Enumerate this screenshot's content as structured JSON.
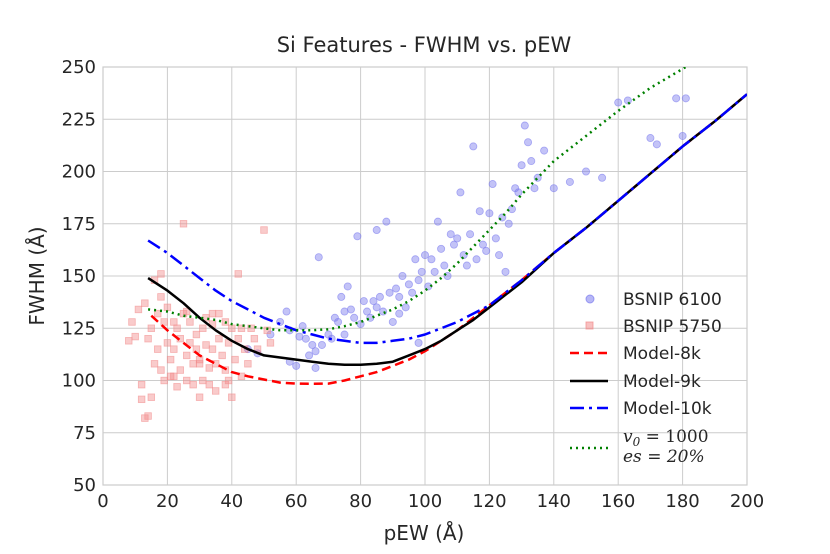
{
  "chart_data": {
    "type": "scatter",
    "title": "Si Features - FWHM vs. pEW",
    "xlabel": "pEW (Å)",
    "ylabel": "FWHM (Å)",
    "xlim": [
      0,
      200
    ],
    "ylim": [
      50,
      250
    ],
    "xticks": [
      "0",
      "20",
      "40",
      "60",
      "80",
      "100",
      "120",
      "140",
      "160",
      "180",
      "200"
    ],
    "yticks": [
      "50",
      "75",
      "100",
      "125",
      "150",
      "175",
      "200",
      "225",
      "250"
    ],
    "grid": true,
    "legend_position": "lower-right",
    "legend": {
      "bsnip6100": "BSNIP 6100",
      "bsnip5750": "BSNIP 5750",
      "model8k": "Model-8k",
      "model9k": "Model-9k",
      "model10k": "Model-10k",
      "v0_line1": "v",
      "v0_sub": "0",
      "v0_line1_rest": " = 1000",
      "es_line2": "es = 20%"
    },
    "colors": {
      "bsnip6100": "#7b7bee",
      "bsnip5750": "#f28c8c",
      "model8k": "#ff0000",
      "model9k": "#000000",
      "model10k": "#0000ff",
      "v0es": "#008000",
      "grid": "#cccccc",
      "text": "#262626"
    },
    "series": [
      {
        "name": "BSNIP 6100",
        "kind": "scatter",
        "marker": "circle",
        "points": [
          [
            45,
            115
          ],
          [
            48,
            113
          ],
          [
            52,
            122
          ],
          [
            55,
            128
          ],
          [
            57,
            133
          ],
          [
            58,
            124
          ],
          [
            60,
            107
          ],
          [
            61,
            121
          ],
          [
            62,
            126
          ],
          [
            63,
            120
          ],
          [
            64,
            112
          ],
          [
            65,
            117
          ],
          [
            66,
            114
          ],
          [
            67,
            159
          ],
          [
            68,
            117
          ],
          [
            70,
            122
          ],
          [
            71,
            120
          ],
          [
            72,
            130
          ],
          [
            73,
            128
          ],
          [
            74,
            140
          ],
          [
            75,
            133
          ],
          [
            76,
            145
          ],
          [
            77,
            134
          ],
          [
            78,
            130
          ],
          [
            79,
            169
          ],
          [
            80,
            127
          ],
          [
            81,
            138
          ],
          [
            82,
            133
          ],
          [
            83,
            130
          ],
          [
            84,
            138
          ],
          [
            85,
            135
          ],
          [
            86,
            140
          ],
          [
            87,
            133
          ],
          [
            88,
            176
          ],
          [
            89,
            142
          ],
          [
            90,
            128
          ],
          [
            91,
            144
          ],
          [
            92,
            140
          ],
          [
            93,
            150
          ],
          [
            94,
            135
          ],
          [
            95,
            146
          ],
          [
            96,
            142
          ],
          [
            97,
            158
          ],
          [
            98,
            148
          ],
          [
            99,
            152
          ],
          [
            100,
            160
          ],
          [
            101,
            145
          ],
          [
            102,
            158
          ],
          [
            103,
            152
          ],
          [
            104,
            176
          ],
          [
            105,
            163
          ],
          [
            106,
            155
          ],
          [
            107,
            150
          ],
          [
            108,
            170
          ],
          [
            109,
            165
          ],
          [
            110,
            168
          ],
          [
            111,
            190
          ],
          [
            112,
            160
          ],
          [
            113,
            155
          ],
          [
            114,
            170
          ],
          [
            115,
            212
          ],
          [
            116,
            158
          ],
          [
            117,
            181
          ],
          [
            118,
            165
          ],
          [
            119,
            162
          ],
          [
            120,
            180
          ],
          [
            121,
            194
          ],
          [
            122,
            168
          ],
          [
            123,
            160
          ],
          [
            124,
            178
          ],
          [
            125,
            152
          ],
          [
            126,
            175
          ],
          [
            127,
            182
          ],
          [
            128,
            192
          ],
          [
            129,
            190
          ],
          [
            130,
            203
          ],
          [
            131,
            222
          ],
          [
            132,
            214
          ],
          [
            133,
            205
          ],
          [
            134,
            192
          ],
          [
            135,
            197
          ],
          [
            137,
            210
          ],
          [
            140,
            192
          ],
          [
            145,
            195
          ],
          [
            150,
            200
          ],
          [
            155,
            197
          ],
          [
            160,
            233
          ],
          [
            163,
            234
          ],
          [
            170,
            216
          ],
          [
            172,
            213
          ],
          [
            178,
            235
          ],
          [
            180,
            217
          ],
          [
            181,
            235
          ],
          [
            85,
            172
          ],
          [
            92,
            132
          ],
          [
            98,
            118
          ],
          [
            75,
            122
          ],
          [
            66,
            106
          ],
          [
            58,
            109
          ]
        ]
      },
      {
        "name": "BSNIP 5750",
        "kind": "scatter",
        "marker": "square",
        "points": [
          [
            8,
            119
          ],
          [
            9,
            128
          ],
          [
            10,
            121
          ],
          [
            11,
            134
          ],
          [
            12,
            98
          ],
          [
            13,
            82
          ],
          [
            13,
            137
          ],
          [
            14,
            120
          ],
          [
            15,
            92
          ],
          [
            15,
            125
          ],
          [
            16,
            108
          ],
          [
            16,
            148
          ],
          [
            17,
            115
          ],
          [
            17,
            132
          ],
          [
            18,
            105
          ],
          [
            18,
            151
          ],
          [
            19,
            100
          ],
          [
            19,
            128
          ],
          [
            20,
            118
          ],
          [
            20,
            135
          ],
          [
            21,
            110
          ],
          [
            21,
            102
          ],
          [
            22,
            128
          ],
          [
            22,
            115
          ],
          [
            23,
            97
          ],
          [
            23,
            125
          ],
          [
            24,
            120
          ],
          [
            24,
            105
          ],
          [
            25,
            175
          ],
          [
            25,
            132
          ],
          [
            26,
            112
          ],
          [
            26,
            100
          ],
          [
            27,
            118
          ],
          [
            27,
            128
          ],
          [
            28,
            108
          ],
          [
            28,
            98
          ],
          [
            29,
            122
          ],
          [
            29,
            115
          ],
          [
            30,
            92
          ],
          [
            30,
            110
          ],
          [
            31,
            125
          ],
          [
            31,
            100
          ],
          [
            32,
            130
          ],
          [
            32,
            117
          ],
          [
            33,
            106
          ],
          [
            33,
            98
          ],
          [
            34,
            115
          ],
          [
            34,
            127
          ],
          [
            35,
            108
          ],
          [
            35,
            95
          ],
          [
            36,
            120
          ],
          [
            36,
            132
          ],
          [
            37,
            112
          ],
          [
            38,
            105
          ],
          [
            38,
            128
          ],
          [
            39,
            100
          ],
          [
            39,
            118
          ],
          [
            40,
            92
          ],
          [
            40,
            125
          ],
          [
            41,
            110
          ],
          [
            42,
            151
          ],
          [
            42,
            120
          ],
          [
            43,
            102
          ],
          [
            44,
            115
          ],
          [
            45,
            108
          ],
          [
            46,
            125
          ],
          [
            48,
            115
          ],
          [
            50,
            172
          ],
          [
            51,
            124
          ],
          [
            52,
            118
          ],
          [
            12,
            91
          ],
          [
            14,
            83
          ],
          [
            18,
            140
          ],
          [
            22,
            102
          ],
          [
            26,
            133
          ],
          [
            30,
            108
          ],
          [
            34,
            132
          ],
          [
            38,
            98
          ],
          [
            43,
            125
          ],
          [
            47,
            120
          ]
        ]
      },
      {
        "name": "Model-8k",
        "kind": "line",
        "dash": "9,5",
        "width": 2.5,
        "points": [
          [
            15,
            131
          ],
          [
            20,
            124
          ],
          [
            25,
            118
          ],
          [
            30,
            112
          ],
          [
            35,
            108
          ],
          [
            40,
            104
          ],
          [
            45,
            102
          ],
          [
            50,
            100.5
          ],
          [
            55,
            99
          ],
          [
            60,
            98.5
          ],
          [
            65,
            98.4
          ],
          [
            70,
            98.5
          ],
          [
            75,
            100
          ],
          [
            80,
            102
          ],
          [
            85,
            104
          ],
          [
            90,
            107
          ],
          [
            95,
            110
          ],
          [
            100,
            114
          ],
          [
            105,
            119
          ],
          [
            110,
            124
          ],
          [
            115,
            130
          ],
          [
            120,
            136
          ],
          [
            125,
            142
          ],
          [
            130,
            148
          ],
          [
            140,
            161
          ],
          [
            150,
            173
          ],
          [
            160,
            186
          ],
          [
            170,
            199
          ],
          [
            180,
            212
          ],
          [
            190,
            224
          ],
          [
            200,
            237
          ]
        ]
      },
      {
        "name": "Model-9k",
        "kind": "line",
        "dash": "",
        "width": 2.5,
        "points": [
          [
            14,
            149
          ],
          [
            20,
            143
          ],
          [
            25,
            137
          ],
          [
            30,
            130
          ],
          [
            35,
            124
          ],
          [
            40,
            119
          ],
          [
            45,
            115
          ],
          [
            50,
            112
          ],
          [
            55,
            111
          ],
          [
            60,
            110
          ],
          [
            65,
            109
          ],
          [
            70,
            108
          ],
          [
            75,
            107.5
          ],
          [
            80,
            107.5
          ],
          [
            85,
            108
          ],
          [
            90,
            109
          ],
          [
            95,
            112
          ],
          [
            100,
            115
          ],
          [
            105,
            119
          ],
          [
            110,
            124
          ],
          [
            115,
            129
          ],
          [
            120,
            135
          ],
          [
            125,
            141
          ],
          [
            130,
            147
          ],
          [
            140,
            161
          ],
          [
            150,
            173
          ],
          [
            160,
            186
          ],
          [
            170,
            199
          ],
          [
            180,
            212
          ],
          [
            190,
            224
          ],
          [
            200,
            237
          ]
        ]
      },
      {
        "name": "Model-10k",
        "kind": "line",
        "dash": "14,5,3,5",
        "width": 2.5,
        "points": [
          [
            14,
            167
          ],
          [
            20,
            161
          ],
          [
            25,
            155
          ],
          [
            30,
            149
          ],
          [
            35,
            143
          ],
          [
            40,
            138
          ],
          [
            45,
            134
          ],
          [
            50,
            130
          ],
          [
            55,
            127
          ],
          [
            60,
            124
          ],
          [
            65,
            122
          ],
          [
            70,
            120
          ],
          [
            75,
            119
          ],
          [
            80,
            118
          ],
          [
            85,
            118
          ],
          [
            90,
            119
          ],
          [
            95,
            120
          ],
          [
            100,
            122
          ],
          [
            105,
            125
          ],
          [
            110,
            128
          ],
          [
            115,
            132
          ],
          [
            120,
            136
          ],
          [
            125,
            142
          ],
          [
            130,
            148
          ],
          [
            140,
            161
          ],
          [
            150,
            173
          ],
          [
            160,
            186
          ],
          [
            170,
            199
          ],
          [
            180,
            212
          ],
          [
            190,
            224
          ],
          [
            200,
            237
          ]
        ]
      },
      {
        "name": "v0 = 1000, es = 20%",
        "kind": "line",
        "dash": "2,4",
        "width": 2.5,
        "points": [
          [
            14,
            134
          ],
          [
            20,
            133
          ],
          [
            25,
            131
          ],
          [
            30,
            130
          ],
          [
            35,
            129
          ],
          [
            40,
            127
          ],
          [
            45,
            126
          ],
          [
            50,
            125
          ],
          [
            55,
            124
          ],
          [
            60,
            124
          ],
          [
            65,
            124
          ],
          [
            70,
            124.5
          ],
          [
            75,
            126
          ],
          [
            80,
            128
          ],
          [
            85,
            131
          ],
          [
            90,
            134
          ],
          [
            95,
            138
          ],
          [
            100,
            143
          ],
          [
            105,
            149
          ],
          [
            110,
            156
          ],
          [
            115,
            164
          ],
          [
            120,
            172
          ],
          [
            125,
            180
          ],
          [
            130,
            189
          ],
          [
            135,
            197
          ],
          [
            140,
            205
          ],
          [
            150,
            217
          ],
          [
            160,
            229
          ],
          [
            170,
            240
          ],
          [
            181,
            250
          ]
        ]
      }
    ]
  }
}
